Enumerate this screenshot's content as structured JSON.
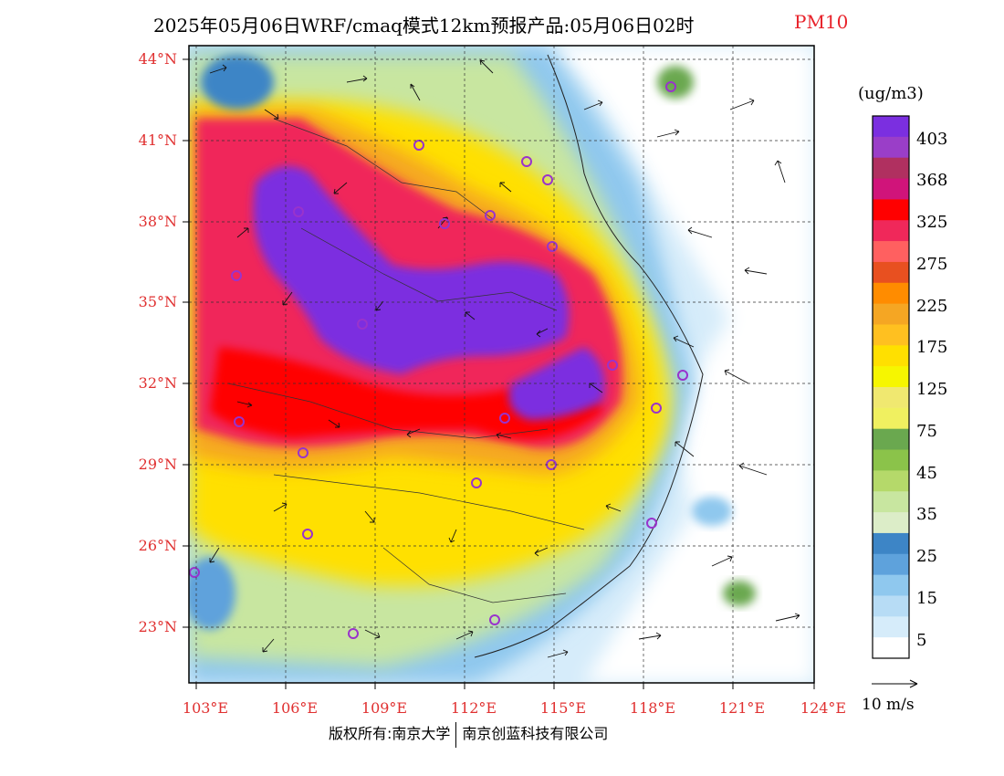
{
  "title": {
    "main": "2025年05月06日WRF/cmaq模式12km预报产品:05月06日02时",
    "species": "PM10"
  },
  "lat_labels": [
    "44°N",
    "41°N",
    "38°N",
    "35°N",
    "32°N",
    "29°N",
    "26°N",
    "23°N"
  ],
  "lon_labels": [
    "103°E",
    "106°E",
    "109°E",
    "112°E",
    "115°E",
    "118°E",
    "121°E",
    "124°E"
  ],
  "colorbar": {
    "unit": "(ug/m3)",
    "labels": [
      "403",
      "368",
      "325",
      "275",
      "225",
      "175",
      "125",
      "75",
      "45",
      "35",
      "25",
      "15",
      "5"
    ],
    "colors": [
      "#7b2fe0",
      "#9a3ec8",
      "#b03060",
      "#d0147a",
      "#ff0000",
      "#f0285a",
      "#ff6060",
      "#e85020",
      "#ff8c00",
      "#f5a623",
      "#ffc020",
      "#ffe000",
      "#f6f600",
      "#f0e870",
      "#f0f060",
      "#6aa84f",
      "#8bc34a",
      "#b5d96a",
      "#c8e6a0",
      "#dcedc8",
      "#3d85c6",
      "#5ea2dc",
      "#8fc8ee",
      "#b7dcf5",
      "#d6ecfa",
      "#ffffff"
    ]
  },
  "wind_reference": "10 m/s",
  "copyright": {
    "left": "版权所有:南京大学",
    "right": "南京创蓝科技有限公司"
  },
  "stations_icon": "circle-marker-icon"
}
